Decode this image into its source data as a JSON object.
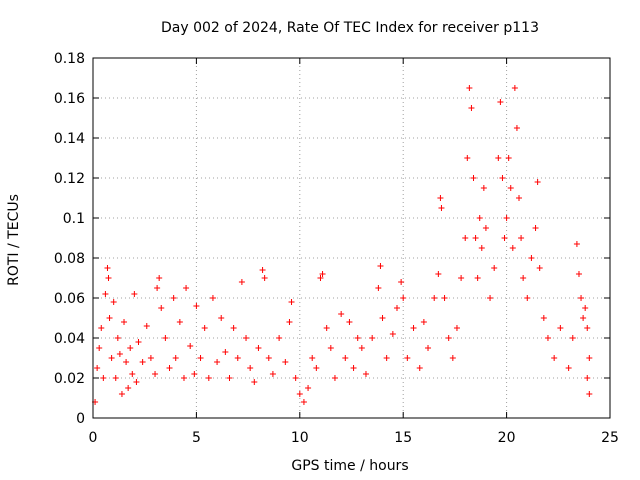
{
  "chart_data": {
    "type": "scatter",
    "title": "Day 002 of 2024, Rate Of TEC Index for receiver p113",
    "xlabel": "GPS time / hours",
    "ylabel": "ROTI / TECUs",
    "xlim": [
      0,
      25
    ],
    "ylim": [
      0,
      0.18
    ],
    "xticks": [
      0,
      5,
      10,
      15,
      20,
      25
    ],
    "yticks": [
      0,
      0.02,
      0.04,
      0.06,
      0.08,
      0.1,
      0.12,
      0.14,
      0.16,
      0.18
    ],
    "xtick_labels": [
      "0",
      "5",
      "10",
      "15",
      "20",
      "25"
    ],
    "ytick_labels": [
      "0",
      "0.02",
      "0.04",
      "0.06",
      "0.08",
      "0.1",
      "0.12",
      "0.14",
      "0.16",
      "0.18"
    ],
    "grid": true,
    "marker": "plus",
    "color": "#ff0000",
    "series": [
      {
        "points": [
          [
            0.1,
            0.008
          ],
          [
            0.2,
            0.025
          ],
          [
            0.3,
            0.035
          ],
          [
            0.4,
            0.045
          ],
          [
            0.5,
            0.02
          ],
          [
            0.6,
            0.062
          ],
          [
            0.7,
            0.075
          ],
          [
            0.75,
            0.07
          ],
          [
            0.8,
            0.05
          ],
          [
            0.9,
            0.03
          ],
          [
            1.0,
            0.058
          ],
          [
            1.1,
            0.02
          ],
          [
            1.2,
            0.04
          ],
          [
            1.3,
            0.032
          ],
          [
            1.4,
            0.012
          ],
          [
            1.5,
            0.048
          ],
          [
            1.6,
            0.028
          ],
          [
            1.7,
            0.015
          ],
          [
            1.8,
            0.035
          ],
          [
            1.9,
            0.022
          ],
          [
            2.0,
            0.062
          ],
          [
            2.1,
            0.018
          ],
          [
            2.2,
            0.038
          ],
          [
            2.4,
            0.028
          ],
          [
            2.6,
            0.046
          ],
          [
            2.8,
            0.03
          ],
          [
            3.0,
            0.022
          ],
          [
            3.1,
            0.065
          ],
          [
            3.2,
            0.07
          ],
          [
            3.3,
            0.055
          ],
          [
            3.5,
            0.04
          ],
          [
            3.7,
            0.025
          ],
          [
            3.9,
            0.06
          ],
          [
            4.0,
            0.03
          ],
          [
            4.2,
            0.048
          ],
          [
            4.4,
            0.02
          ],
          [
            4.5,
            0.065
          ],
          [
            4.7,
            0.036
          ],
          [
            4.9,
            0.022
          ],
          [
            5.0,
            0.056
          ],
          [
            5.2,
            0.03
          ],
          [
            5.4,
            0.045
          ],
          [
            5.6,
            0.02
          ],
          [
            5.8,
            0.06
          ],
          [
            6.0,
            0.028
          ],
          [
            6.2,
            0.05
          ],
          [
            6.4,
            0.033
          ],
          [
            6.6,
            0.02
          ],
          [
            6.8,
            0.045
          ],
          [
            7.0,
            0.03
          ],
          [
            7.2,
            0.068
          ],
          [
            7.4,
            0.04
          ],
          [
            7.6,
            0.025
          ],
          [
            7.8,
            0.018
          ],
          [
            8.0,
            0.035
          ],
          [
            8.2,
            0.074
          ],
          [
            8.3,
            0.07
          ],
          [
            8.5,
            0.03
          ],
          [
            8.7,
            0.022
          ],
          [
            9.0,
            0.04
          ],
          [
            9.3,
            0.028
          ],
          [
            9.5,
            0.048
          ],
          [
            9.6,
            0.058
          ],
          [
            9.8,
            0.02
          ],
          [
            10.0,
            0.012
          ],
          [
            10.2,
            0.008
          ],
          [
            10.4,
            0.015
          ],
          [
            10.6,
            0.03
          ],
          [
            10.8,
            0.025
          ],
          [
            11.0,
            0.07
          ],
          [
            11.1,
            0.072
          ],
          [
            11.3,
            0.045
          ],
          [
            11.5,
            0.035
          ],
          [
            11.7,
            0.02
          ],
          [
            12.0,
            0.052
          ],
          [
            12.2,
            0.03
          ],
          [
            12.4,
            0.048
          ],
          [
            12.6,
            0.025
          ],
          [
            12.8,
            0.04
          ],
          [
            13.0,
            0.035
          ],
          [
            13.2,
            0.022
          ],
          [
            13.5,
            0.04
          ],
          [
            13.8,
            0.065
          ],
          [
            13.9,
            0.076
          ],
          [
            14.0,
            0.05
          ],
          [
            14.2,
            0.03
          ],
          [
            14.5,
            0.042
          ],
          [
            14.7,
            0.055
          ],
          [
            14.9,
            0.068
          ],
          [
            15.0,
            0.06
          ],
          [
            15.2,
            0.03
          ],
          [
            15.5,
            0.045
          ],
          [
            15.8,
            0.025
          ],
          [
            16.0,
            0.048
          ],
          [
            16.2,
            0.035
          ],
          [
            16.5,
            0.06
          ],
          [
            16.7,
            0.072
          ],
          [
            16.8,
            0.11
          ],
          [
            16.85,
            0.105
          ],
          [
            17.0,
            0.06
          ],
          [
            17.2,
            0.04
          ],
          [
            17.4,
            0.03
          ],
          [
            17.6,
            0.045
          ],
          [
            17.8,
            0.07
          ],
          [
            18.0,
            0.09
          ],
          [
            18.1,
            0.13
          ],
          [
            18.2,
            0.165
          ],
          [
            18.3,
            0.155
          ],
          [
            18.4,
            0.12
          ],
          [
            18.5,
            0.09
          ],
          [
            18.6,
            0.07
          ],
          [
            18.7,
            0.1
          ],
          [
            18.8,
            0.085
          ],
          [
            18.9,
            0.115
          ],
          [
            19.0,
            0.095
          ],
          [
            19.2,
            0.06
          ],
          [
            19.4,
            0.075
          ],
          [
            19.6,
            0.13
          ],
          [
            19.7,
            0.158
          ],
          [
            19.8,
            0.12
          ],
          [
            19.9,
            0.09
          ],
          [
            20.0,
            0.1
          ],
          [
            20.1,
            0.13
          ],
          [
            20.2,
            0.115
          ],
          [
            20.3,
            0.085
          ],
          [
            20.4,
            0.165
          ],
          [
            20.5,
            0.145
          ],
          [
            20.6,
            0.11
          ],
          [
            20.7,
            0.09
          ],
          [
            20.8,
            0.07
          ],
          [
            21.0,
            0.06
          ],
          [
            21.2,
            0.08
          ],
          [
            21.4,
            0.095
          ],
          [
            21.5,
            0.118
          ],
          [
            21.6,
            0.075
          ],
          [
            21.8,
            0.05
          ],
          [
            22.0,
            0.04
          ],
          [
            22.3,
            0.03
          ],
          [
            22.6,
            0.045
          ],
          [
            23.0,
            0.025
          ],
          [
            23.2,
            0.04
          ],
          [
            23.4,
            0.087
          ],
          [
            23.5,
            0.072
          ],
          [
            23.6,
            0.06
          ],
          [
            23.7,
            0.05
          ],
          [
            23.8,
            0.055
          ],
          [
            23.9,
            0.045
          ],
          [
            24.0,
            0.03
          ],
          [
            24.0,
            0.012
          ],
          [
            23.9,
            0.02
          ]
        ]
      }
    ]
  }
}
